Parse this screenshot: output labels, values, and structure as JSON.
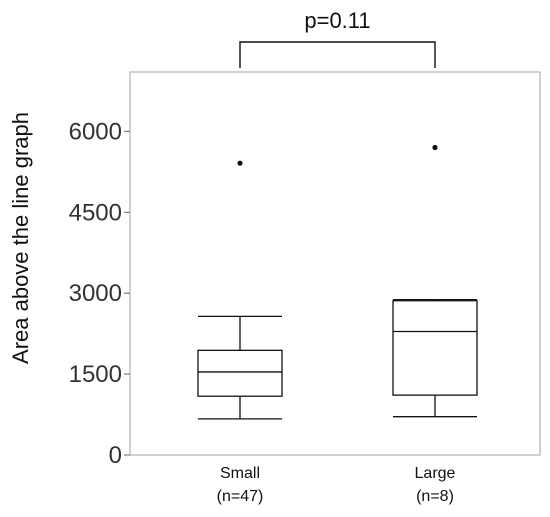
{
  "chart_data": {
    "type": "box",
    "title": "",
    "xlabel": "",
    "ylabel": "Area above the line graph",
    "ylim": [
      0,
      7100
    ],
    "yticks": [
      0,
      1500,
      3000,
      4500,
      6000
    ],
    "ytick_labels": [
      "0",
      "1500",
      "3000",
      "4500",
      "6000"
    ],
    "grid": false,
    "legend": "none",
    "categories": [
      {
        "label_line1": "Small",
        "label_line2": "(n=47)"
      },
      {
        "label_line1": "Large",
        "label_line2": "(n=8)"
      }
    ],
    "boxes": [
      {
        "whisker_low": 670,
        "q1": 1090,
        "median": 1540,
        "q3": 1940,
        "whisker_high": 2570,
        "outliers": [
          5410
        ]
      },
      {
        "whisker_low": 710,
        "q1": 1110,
        "median": 2290,
        "q3": 2860,
        "whisker_high": 2880,
        "outliers": [
          5700
        ]
      }
    ],
    "annotation": {
      "text": "p=0.11",
      "from_category": 0,
      "to_category": 1
    },
    "colors": {
      "box_stroke": "#111111",
      "frame": "#bdbdbd",
      "text": "#111111"
    }
  }
}
